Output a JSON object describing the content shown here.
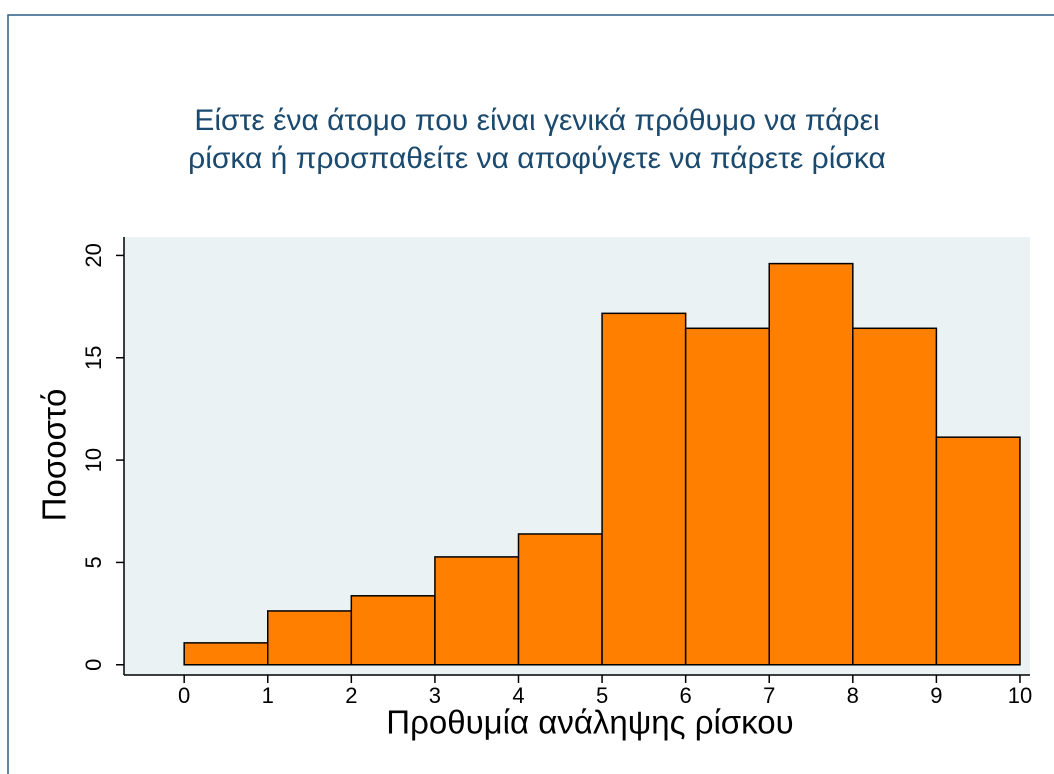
{
  "chart_data": {
    "type": "histogram",
    "title": [
      "Είστε ένα άτομο που είναι γενικά πρόθυμο να πάρει",
      "ρίσκα ή προσπαθείτε να αποφύγετε να πάρετε ρίσκα"
    ],
    "x_label": "Προθυμία ανάληψης ρίσκου",
    "y_label": "Ποσοστό",
    "bins": [
      0,
      1,
      2,
      3,
      4,
      5,
      6,
      7,
      8,
      9,
      10
    ],
    "values": [
      1.07,
      2.63,
      3.37,
      5.27,
      6.39,
      17.17,
      16.44,
      19.6,
      16.44,
      11.12
    ],
    "color": "#ff8000",
    "xlim": [
      -0.72,
      10.12
    ],
    "ylim": [
      -0.5,
      20.9
    ],
    "xticks": [
      0,
      1,
      2,
      3,
      4,
      5,
      6,
      7,
      8,
      9,
      10
    ],
    "yticks": [
      0,
      5,
      10,
      15,
      20
    ]
  }
}
